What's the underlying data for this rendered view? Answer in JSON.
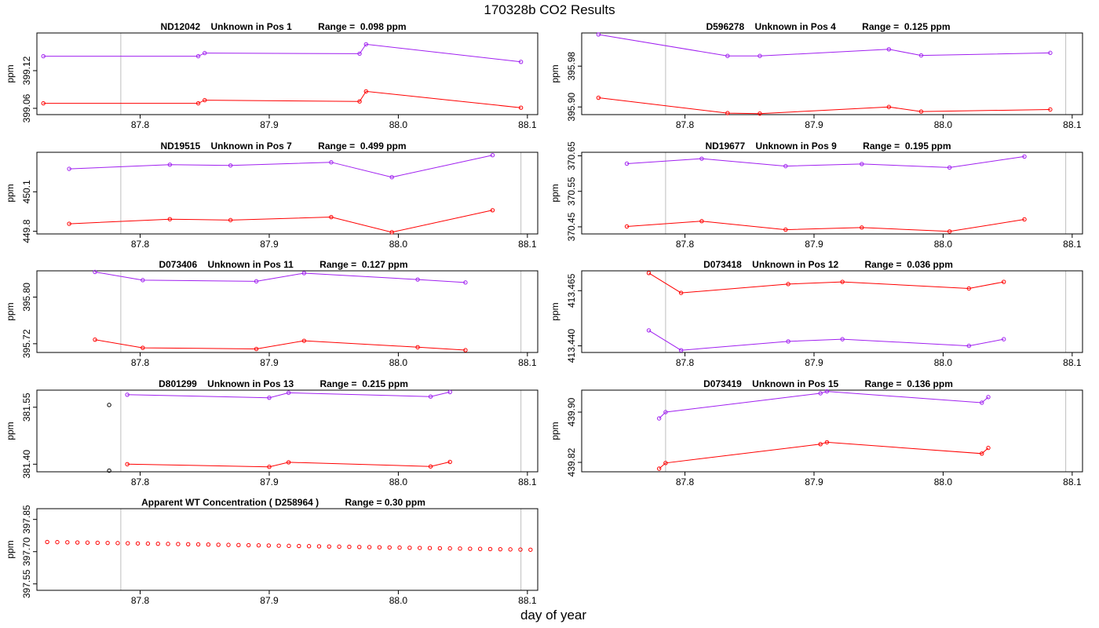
{
  "figure": {
    "title": "170328b  CO2 Results",
    "xlabel": "day of year",
    "colors": {
      "upper_series": "#a020f0",
      "lower_series": "#ff0000",
      "vline": "#bebebe",
      "black_point": "#000000"
    }
  },
  "chart_data": [
    {
      "type": "line",
      "title": "ND12042    Unknown in Pos 1          Range =  0.098 ppm",
      "ylabel": "ppm",
      "xlim": [
        87.72,
        88.108
      ],
      "ylim": [
        399.05,
        399.18
      ],
      "xticks": [
        87.8,
        87.9,
        88.0,
        88.1
      ],
      "xtick_labels": [
        "87.8",
        "87.9",
        "88.0",
        "88.1"
      ],
      "yticks": [
        399.06,
        399.12
      ],
      "ytick_labels": [
        "399.06",
        "399.12"
      ],
      "vlines": [
        87.785
      ],
      "series": [
        {
          "name": "upper",
          "color": "#a020f0",
          "x": [
            87.725,
            87.845,
            87.85,
            87.97,
            87.975,
            88.095
          ],
          "y": [
            399.143,
            399.143,
            399.148,
            399.147,
            399.162,
            399.134
          ]
        },
        {
          "name": "lower",
          "color": "#ff0000",
          "x": [
            87.725,
            87.845,
            87.85,
            87.97,
            87.975,
            88.095
          ],
          "y": [
            399.068,
            399.068,
            399.073,
            399.071,
            399.087,
            399.061
          ]
        }
      ]
    },
    {
      "type": "line",
      "title": "D596278    Unknown in Pos 4          Range =  0.125 ppm",
      "ylabel": "ppm",
      "xlim": [
        87.72,
        88.108
      ],
      "ylim": [
        395.885,
        396.045
      ],
      "xticks": [
        87.8,
        87.9,
        88.0,
        88.1
      ],
      "xtick_labels": [
        "87.8",
        "87.9",
        "88.0",
        "88.1"
      ],
      "yticks": [
        395.9,
        395.98
      ],
      "ytick_labels": [
        "395.90",
        "395.98"
      ],
      "vlines": [
        87.785,
        88.095
      ],
      "series": [
        {
          "name": "upper",
          "color": "#a020f0",
          "x": [
            87.733,
            87.833,
            87.858,
            87.958,
            87.983,
            88.083
          ],
          "y": [
            396.042,
            396.0,
            396.0,
            396.013,
            396.001,
            396.006
          ]
        },
        {
          "name": "lower",
          "color": "#ff0000",
          "x": [
            87.733,
            87.833,
            87.858,
            87.958,
            87.983,
            88.083
          ],
          "y": [
            395.918,
            395.888,
            395.887,
            395.9,
            395.891,
            395.895
          ]
        }
      ]
    },
    {
      "type": "line",
      "title": "ND19515    Unknown in Pos 7          Range =  0.499 ppm",
      "ylabel": "ppm",
      "xlim": [
        87.72,
        88.108
      ],
      "ylim": [
        449.78,
        450.4
      ],
      "xticks": [
        87.8,
        87.9,
        88.0,
        88.1
      ],
      "xtick_labels": [
        "87.8",
        "87.9",
        "88.0",
        "88.1"
      ],
      "yticks": [
        449.8,
        450.1
      ],
      "ytick_labels": [
        "449.8",
        "450.1"
      ],
      "vlines": [
        87.785,
        88.095
      ],
      "series": [
        {
          "name": "upper",
          "color": "#a020f0",
          "x": [
            87.745,
            87.823,
            87.87,
            87.948,
            87.995,
            88.073
          ],
          "y": [
            450.274,
            450.306,
            450.3,
            450.324,
            450.211,
            450.378
          ]
        },
        {
          "name": "lower",
          "color": "#ff0000",
          "x": [
            87.745,
            87.823,
            87.87,
            87.948,
            87.995,
            88.073
          ],
          "y": [
            449.857,
            449.892,
            449.885,
            449.908,
            449.793,
            449.96
          ]
        }
      ]
    },
    {
      "type": "line",
      "title": "ND19677    Unknown in Pos 9          Range =  0.195 ppm",
      "ylabel": "ppm",
      "xlim": [
        87.72,
        88.108
      ],
      "ylim": [
        370.43,
        370.66
      ],
      "xticks": [
        87.8,
        87.9,
        88.0,
        88.1
      ],
      "xtick_labels": [
        "87.8",
        "87.9",
        "88.0",
        "88.1"
      ],
      "yticks": [
        370.45,
        370.55,
        370.65
      ],
      "ytick_labels": [
        "370.45",
        "370.55",
        "370.65"
      ],
      "vlines": [
        87.785,
        88.095
      ],
      "series": [
        {
          "name": "upper",
          "color": "#a020f0",
          "x": [
            87.755,
            87.813,
            87.878,
            87.937,
            88.005,
            88.063
          ],
          "y": [
            370.628,
            370.642,
            370.621,
            370.627,
            370.617,
            370.648
          ]
        },
        {
          "name": "lower",
          "color": "#ff0000",
          "x": [
            87.755,
            87.813,
            87.878,
            87.937,
            88.005,
            88.063
          ],
          "y": [
            370.451,
            370.466,
            370.442,
            370.448,
            370.437,
            370.471
          ]
        }
      ]
    },
    {
      "type": "line",
      "title": "D073406    Unknown in Pos 11          Range =  0.127 ppm",
      "ylabel": "ppm",
      "xlim": [
        87.72,
        88.108
      ],
      "ylim": [
        395.705,
        395.845
      ],
      "xticks": [
        87.8,
        87.9,
        88.0,
        88.1
      ],
      "xtick_labels": [
        "87.8",
        "87.9",
        "88.0",
        "88.1"
      ],
      "yticks": [
        395.72,
        395.8
      ],
      "ytick_labels": [
        "395.72",
        "395.80"
      ],
      "vlines": [
        87.785,
        88.095
      ],
      "series": [
        {
          "name": "upper",
          "color": "#a020f0",
          "x": [
            87.765,
            87.802,
            87.89,
            87.927,
            88.015,
            88.052
          ],
          "y": [
            395.843,
            395.829,
            395.827,
            395.841,
            395.83,
            395.825
          ]
        },
        {
          "name": "lower",
          "color": "#ff0000",
          "x": [
            87.765,
            87.802,
            87.89,
            87.927,
            88.015,
            88.052
          ],
          "y": [
            395.727,
            395.713,
            395.711,
            395.725,
            395.714,
            395.709
          ]
        }
      ]
    },
    {
      "type": "line",
      "title": "D073418    Unknown in Pos 12          Range =  0.036 ppm",
      "ylabel": "ppm",
      "xlim": [
        87.72,
        88.108
      ],
      "ylim": [
        413.437,
        413.474
      ],
      "xticks": [
        87.8,
        87.9,
        88.0,
        88.1
      ],
      "xtick_labels": [
        "87.8",
        "87.9",
        "88.0",
        "88.1"
      ],
      "yticks": [
        413.44,
        413.465
      ],
      "ytick_labels": [
        "413.440",
        "413.465"
      ],
      "vlines": [
        87.785,
        88.095
      ],
      "series": [
        {
          "name": "upper",
          "color": "#a020f0",
          "x": [
            87.772,
            87.797,
            87.88,
            87.922,
            88.02,
            88.047
          ],
          "y": [
            413.447,
            413.438,
            413.442,
            413.443,
            413.44,
            413.443
          ]
        },
        {
          "name": "lower",
          "color": "#ff0000",
          "x": [
            87.772,
            87.797,
            87.88,
            87.922,
            88.02,
            88.047
          ],
          "y": [
            413.473,
            413.464,
            413.468,
            413.469,
            413.466,
            413.469
          ]
        }
      ]
    },
    {
      "type": "line",
      "title": "D801299    Unknown in Pos 13          Range =  0.215 ppm",
      "ylabel": "ppm",
      "xlim": [
        87.72,
        88.108
      ],
      "ylim": [
        381.38,
        381.595
      ],
      "xticks": [
        87.8,
        87.9,
        88.0,
        88.1
      ],
      "xtick_labels": [
        "87.8",
        "87.9",
        "88.0",
        "88.1"
      ],
      "yticks": [
        381.4,
        381.55
      ],
      "ytick_labels": [
        "381.40",
        "381.55"
      ],
      "vlines": [
        87.785,
        88.095
      ],
      "series": [
        {
          "name": "upper",
          "color": "#a020f0",
          "x": [
            87.79,
            87.9,
            87.915,
            88.025,
            88.04
          ],
          "y": [
            381.583,
            381.575,
            381.588,
            381.578,
            381.59
          ]
        },
        {
          "name": "lower",
          "color": "#ff0000",
          "x": [
            87.79,
            87.9,
            87.915,
            88.025,
            88.04
          ],
          "y": [
            381.4,
            381.393,
            381.405,
            381.394,
            381.406
          ]
        },
        {
          "name": "black",
          "color": "#000000",
          "points_only": true,
          "x": [
            87.776,
            87.776
          ],
          "y": [
            381.556,
            381.383
          ]
        }
      ]
    },
    {
      "type": "line",
      "title": "D073419    Unknown in Pos 15          Range =  0.136 ppm",
      "ylabel": "ppm",
      "xlim": [
        87.72,
        88.108
      ],
      "ylim": [
        439.805,
        439.935
      ],
      "xticks": [
        87.8,
        87.9,
        88.0,
        88.1
      ],
      "xtick_labels": [
        "87.8",
        "87.9",
        "88.0",
        "88.1"
      ],
      "yticks": [
        439.82,
        439.9
      ],
      "ytick_labels": [
        "439.82",
        "439.90"
      ],
      "vlines": [
        87.785,
        88.095
      ],
      "series": [
        {
          "name": "upper",
          "color": "#a020f0",
          "x": [
            87.78,
            87.785,
            87.905,
            87.91,
            88.03,
            88.035
          ],
          "y": [
            439.89,
            439.9,
            439.93,
            439.933,
            439.915,
            439.924
          ]
        },
        {
          "name": "lower",
          "color": "#ff0000",
          "x": [
            87.78,
            87.785,
            87.905,
            87.91,
            88.03,
            88.035
          ],
          "y": [
            439.81,
            439.819,
            439.849,
            439.852,
            439.834,
            439.843
          ]
        }
      ]
    },
    {
      "type": "scatter",
      "title": "Apparent WT Concentration ( D258964 )          Range = 0.30 ppm",
      "ylabel": "ppm",
      "xlim": [
        87.72,
        88.108
      ],
      "ylim": [
        397.52,
        397.9
      ],
      "xticks": [
        87.8,
        87.9,
        88.0,
        88.1
      ],
      "xtick_labels": [
        "87.8",
        "87.9",
        "88.0",
        "88.1"
      ],
      "yticks": [
        397.55,
        397.7,
        397.85
      ],
      "ytick_labels": [
        "397.55",
        "397.70",
        "397.85"
      ],
      "vlines": [
        87.785,
        88.095
      ],
      "series": [
        {
          "name": "WT",
          "color": "#ff0000",
          "points_only": true,
          "x_start": 87.728,
          "x_step": 0.0078,
          "count": 49,
          "y_start": 397.745,
          "y_end": 397.709
        }
      ]
    }
  ]
}
